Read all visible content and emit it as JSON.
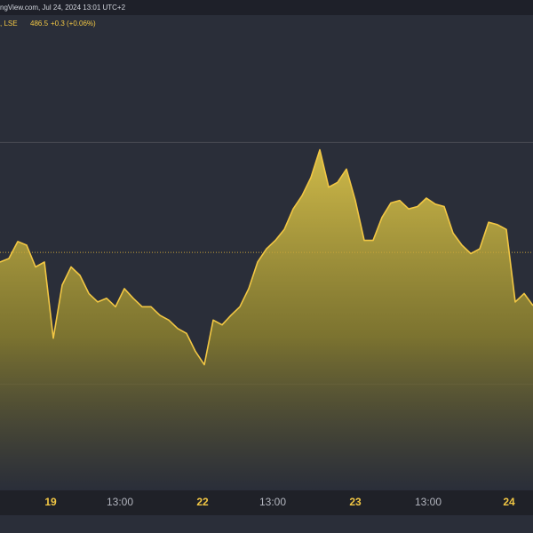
{
  "chart_data": {
    "type": "area",
    "source": "ngView.com, Jul 24, 2024 13:01 UTC+2",
    "symbol": ", LSE",
    "price": 486.5,
    "change": "+0.3 (+0.06%)",
    "color": "#f2c744",
    "values": [
      490.1,
      490.4,
      491.8,
      491.5,
      489.7,
      490.1,
      483.8,
      488.2,
      489.7,
      489.0,
      487.5,
      486.8,
      487.1,
      486.4,
      487.9,
      487.1,
      486.4,
      486.4,
      485.7,
      485.3,
      484.6,
      484.2,
      482.7,
      481.6,
      485.3,
      484.9,
      485.7,
      486.4,
      487.9,
      490.1,
      491.2,
      491.9,
      492.8,
      494.5,
      495.6,
      497.1,
      499.4,
      496.3,
      496.7,
      497.8,
      495.2,
      491.9,
      491.9,
      493.8,
      495.0,
      495.2,
      494.5,
      494.7,
      495.4,
      494.9,
      494.7,
      492.5,
      491.5,
      490.8,
      491.2,
      493.4,
      493.2,
      492.8,
      486.8,
      487.5,
      486.5
    ],
    "ylim": [
      471.2,
      511.8
    ],
    "gridlines": [
      480,
      500
    ],
    "ref_line": 490.9,
    "xlim": [
      0,
      60
    ],
    "xticks": [
      {
        "value": 5.7,
        "label": "19"
      },
      {
        "value": 13.5,
        "label": "13:00"
      },
      {
        "value": 22.8,
        "label": "22"
      },
      {
        "value": 30.7,
        "label": "13:00"
      },
      {
        "value": 40,
        "label": "23"
      },
      {
        "value": 48.2,
        "label": "13:00"
      },
      {
        "value": 57.3,
        "label": "24"
      }
    ]
  }
}
